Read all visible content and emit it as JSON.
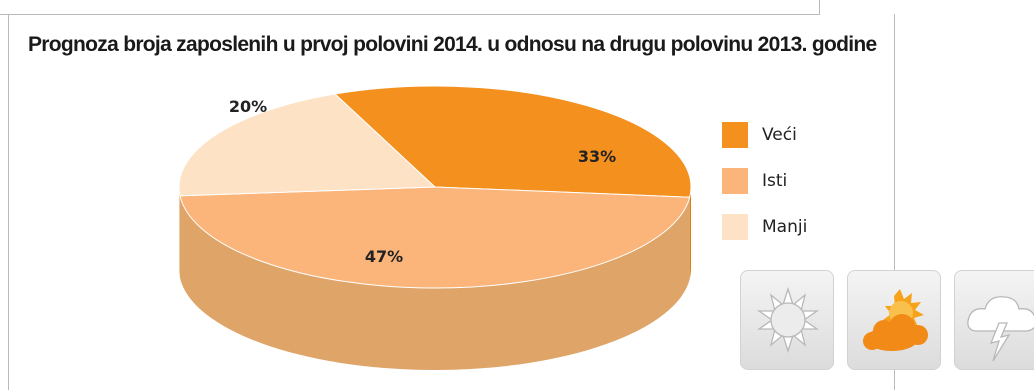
{
  "chart_data": {
    "type": "pie",
    "title": "Prognoza broja zaposlenih u prvoj polovini 2014. u odnosu na drugu polovinu 2013. godine",
    "slices": [
      {
        "label": "Veći",
        "value": 33,
        "value_label": "33%",
        "color": "#f4901e",
        "side_color": "#d97d14"
      },
      {
        "label": "Isti",
        "value": 47,
        "value_label": "47%",
        "color": "#fbb57a",
        "side_color": "#dea468"
      },
      {
        "label": "Manji",
        "value": 20,
        "value_label": "20%",
        "color": "#fde2c6",
        "side_color": "#e8c9a6"
      }
    ],
    "legend_position": "right"
  },
  "weather_icons": [
    "sun-icon",
    "partly-cloudy-icon",
    "storm-icon"
  ]
}
